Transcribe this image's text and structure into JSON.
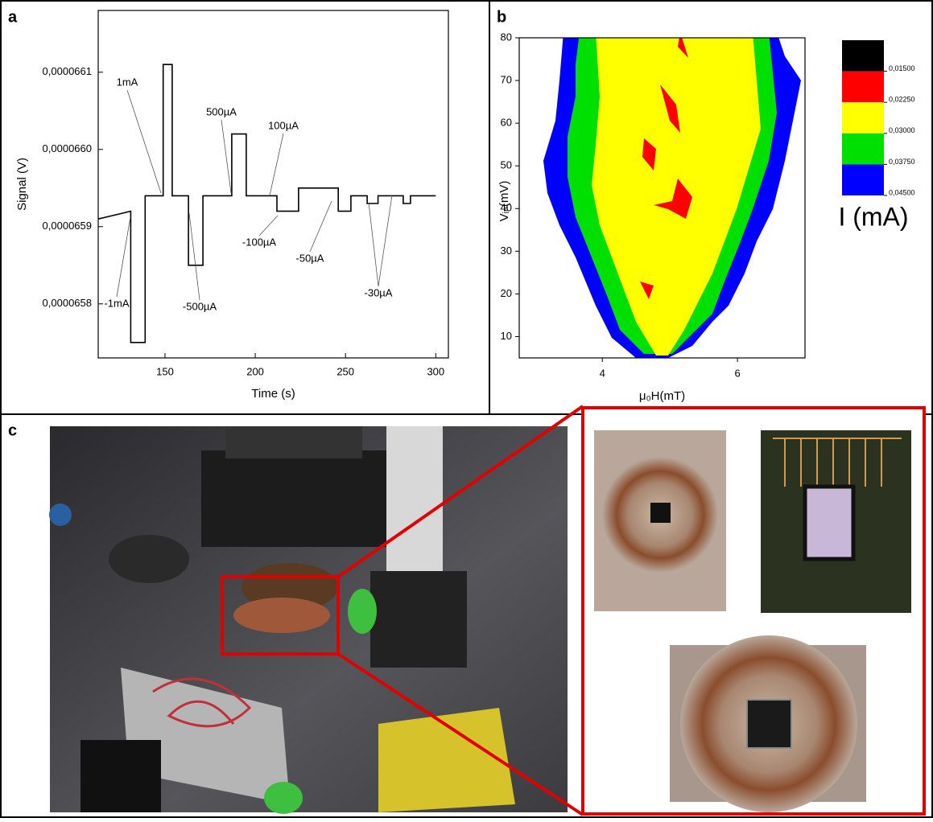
{
  "panel_labels": [
    "a",
    "b",
    "c"
  ],
  "chart_data": [
    {
      "type": "line",
      "xlabel": "Time (s)",
      "ylabel": "Signal (V)",
      "color": "#000000",
      "x": [
        113,
        131,
        131,
        139,
        139,
        149,
        149,
        154,
        154,
        163,
        163,
        171,
        171,
        187,
        187,
        195,
        195,
        212,
        212,
        224,
        224,
        246,
        246,
        253,
        253,
        262,
        262,
        268,
        268,
        282,
        282,
        286,
        286,
        300
      ],
      "values": [
        6.591e-05,
        6.592e-05,
        6.575e-05,
        6.575e-05,
        6.594e-05,
        6.594e-05,
        6.611e-05,
        6.611e-05,
        6.594e-05,
        6.594e-05,
        6.585e-05,
        6.585e-05,
        6.594e-05,
        6.594e-05,
        6.602e-05,
        6.602e-05,
        6.594e-05,
        6.594e-05,
        6.592e-05,
        6.592e-05,
        6.595e-05,
        6.595e-05,
        6.592e-05,
        6.592e-05,
        6.594e-05,
        6.594e-05,
        6.593e-05,
        6.593e-05,
        6.594e-05,
        6.594e-05,
        6.593e-05,
        6.593e-05,
        6.594e-05,
        6.594e-05
      ],
      "xlim": [
        113,
        307
      ],
      "xticks": [
        150,
        200,
        250,
        300
      ],
      "ylim": [
        6.573e-05,
        6.618e-05
      ],
      "yticks": [
        {
          "value": 6.58e-05,
          "label": "0,0000658"
        },
        {
          "value": 6.59e-05,
          "label": "0,0000659"
        },
        {
          "value": 6.6e-05,
          "label": "0,0000660"
        },
        {
          "value": 6.61e-05,
          "label": "0,0000661"
        }
      ],
      "annotations": [
        "1mA",
        "-1mA",
        "500µA",
        "-500µA",
        "100µA",
        "-100µA",
        "-50µA",
        "-30µA"
      ]
    },
    {
      "type": "contour",
      "xlabel": "μ₀H(mT)",
      "ylabel": "Vᵢₙ(mV)",
      "xlim": [
        2.77,
        7
      ],
      "xticks": [
        4,
        6
      ],
      "ylim": [
        5,
        80
      ],
      "yticks": [
        10,
        20,
        30,
        40,
        50,
        60,
        70,
        80
      ],
      "colorbar_label": "I (mA)",
      "levels": [
        {
          "value": 0.015,
          "label": "0,01500"
        },
        {
          "value": 0.0225,
          "label": "0,02250"
        },
        {
          "value": 0.03,
          "label": "0,03000"
        },
        {
          "value": 0.0375,
          "label": "0,03750"
        },
        {
          "value": 0.045,
          "label": "0,04500"
        }
      ],
      "colors": [
        "#000000",
        "#ff0000",
        "#ffff00",
        "#00e000",
        "#0000ff"
      ]
    }
  ]
}
